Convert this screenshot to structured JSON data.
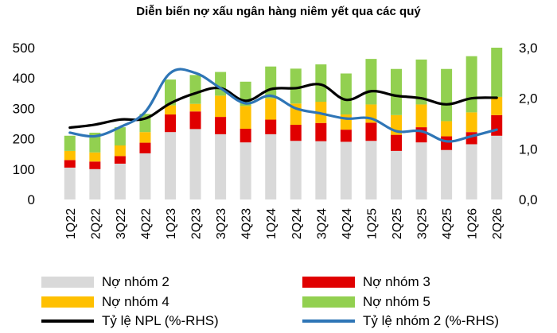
{
  "chart_data": {
    "type": "bar",
    "title": "Diễn biến nợ xấu ngân hàng niêm yết qua các quý",
    "categories": [
      "1Q22",
      "2Q22",
      "3Q22",
      "4Q22",
      "1Q23",
      "2Q23",
      "3Q23",
      "4Q23",
      "1Q24",
      "2Q24",
      "3Q24",
      "4Q24",
      "1Q25",
      "2Q25",
      "3Q25",
      "4Q25",
      "1Q26",
      "2Q26"
    ],
    "stacked": true,
    "series": [
      {
        "name": "Nợ nhóm 2",
        "color": "#d9d9d9",
        "values": [
          105,
          100,
          118,
          152,
          222,
          232,
          215,
          188,
          215,
          193,
          192,
          190,
          193,
          160,
          188,
          163,
          182,
          210
        ]
      },
      {
        "name": "Nợ nhóm 3",
        "color": "#e00000",
        "values": [
          25,
          25,
          25,
          35,
          58,
          58,
          57,
          45,
          48,
          53,
          60,
          40,
          60,
          53,
          50,
          45,
          40,
          68
        ]
      },
      {
        "name": "Nợ nhóm 4",
        "color": "#ffc000",
        "values": [
          30,
          30,
          35,
          35,
          30,
          25,
          70,
          75,
          70,
          70,
          70,
          50,
          60,
          65,
          75,
          50,
          65,
          60
        ]
      },
      {
        "name": "Nợ nhóm 5",
        "color": "#92d050",
        "values": [
          50,
          65,
          60,
          60,
          85,
          95,
          78,
          80,
          105,
          115,
          123,
          135,
          150,
          152,
          148,
          172,
          185,
          162
        ]
      }
    ],
    "line_series": [
      {
        "name": "Tỷ lệ NPL (%-RHS)",
        "color": "#000000",
        "axis": "right",
        "values": [
          1.42,
          1.48,
          1.58,
          1.6,
          1.9,
          2.1,
          2.2,
          1.95,
          2.18,
          2.2,
          2.27,
          1.97,
          2.14,
          2.05,
          2.0,
          1.88,
          2.0,
          2.01
        ]
      },
      {
        "name": "Tỷ lệ nhóm 2 (%-RHS)",
        "color": "#2e75b6",
        "axis": "right",
        "values": [
          1.32,
          1.25,
          1.43,
          1.73,
          2.5,
          2.5,
          2.2,
          1.9,
          2.05,
          1.8,
          1.7,
          1.6,
          1.6,
          1.35,
          1.35,
          1.15,
          1.25,
          1.38
        ]
      }
    ],
    "left_axis": {
      "ylim": [
        0,
        500
      ],
      "ticks": [
        "0",
        "100",
        "200",
        "300",
        "400",
        "500"
      ]
    },
    "right_axis": {
      "ylim": [
        0,
        3.0
      ],
      "ticks": [
        "0,0",
        "1,0",
        "2,0",
        "3,0"
      ]
    },
    "grid": false,
    "legend_position": "bottom"
  }
}
